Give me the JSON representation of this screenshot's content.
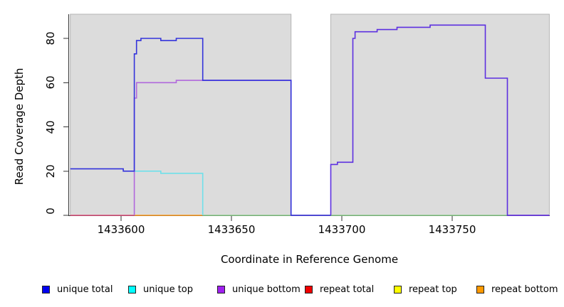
{
  "chart_data": {
    "type": "line",
    "title": "",
    "xlabel": "Coordinate in Reference Genome",
    "ylabel": "Read Coverage Depth",
    "xlim": [
      1433577,
      1433794
    ],
    "ylim": [
      0,
      91
    ],
    "x_ticks": [
      1433600,
      1433650,
      1433700,
      1433750
    ],
    "y_ticks": [
      0,
      20,
      40,
      60,
      80
    ],
    "grid": false,
    "plot_bg": "#ffffff",
    "region_fill": "#dcdcdc",
    "region_border": "#b4b4b4",
    "axis_color": "#333333",
    "background_regions": [
      {
        "start": 1433577,
        "end": 1433677
      },
      {
        "start": 1433695,
        "end": 1433794
      }
    ],
    "gap_region": {
      "start": 1433677,
      "end": 1433695
    },
    "series": [
      {
        "name": "repeat-total-baseline",
        "color": "#e0517c",
        "points": [
          [
            1433577,
            0
          ],
          [
            1433606,
            0
          ]
        ]
      },
      {
        "name": "repeat-bottom-baseline",
        "color": "#ff9d1f",
        "points": [
          [
            1433606,
            0
          ],
          [
            1433637,
            0
          ]
        ]
      },
      {
        "name": "overlapped-zero-baseline",
        "color": "#8ccf8c",
        "points": [
          [
            1433637,
            0
          ],
          [
            1433775,
            0
          ]
        ]
      },
      {
        "name": "unique-top",
        "color": "#6fe0ea",
        "points": [
          [
            1433606,
            20
          ],
          [
            1433618,
            20
          ],
          [
            1433618,
            19
          ],
          [
            1433637,
            19
          ],
          [
            1433637,
            0
          ]
        ]
      },
      {
        "name": "unique-bottom",
        "color": "#b168dc",
        "points": [
          [
            1433606,
            0
          ],
          [
            1433606,
            53
          ],
          [
            1433607,
            53
          ],
          [
            1433607,
            60
          ],
          [
            1433625,
            60
          ],
          [
            1433625,
            61
          ],
          [
            1433677,
            61
          ],
          [
            1433677,
            0
          ],
          [
            1433695,
            0
          ]
        ]
      },
      {
        "name": "unique-bottom-right-tail",
        "color": "#b168dc",
        "points": [
          [
            1433775,
            0
          ],
          [
            1433794,
            0
          ]
        ]
      },
      {
        "name": "unique-total-left-block",
        "color": "#3333db",
        "points": [
          [
            1433577,
            21
          ],
          [
            1433601,
            21
          ],
          [
            1433601,
            20
          ],
          [
            1433606,
            20
          ],
          [
            1433606,
            73
          ],
          [
            1433607,
            73
          ],
          [
            1433607,
            79
          ],
          [
            1433609,
            79
          ],
          [
            1433609,
            80
          ],
          [
            1433618,
            80
          ],
          [
            1433618,
            79
          ],
          [
            1433625,
            79
          ],
          [
            1433625,
            80
          ],
          [
            1433637,
            80
          ],
          [
            1433637,
            61
          ],
          [
            1433677,
            61
          ],
          [
            1433677,
            0
          ],
          [
            1433695,
            0
          ]
        ]
      },
      {
        "name": "unique-total-right-block-overlapping-unique-bottom",
        "color": "#5c2fe0",
        "points": [
          [
            1433695,
            0
          ],
          [
            1433695,
            23
          ],
          [
            1433698,
            23
          ],
          [
            1433698,
            24
          ],
          [
            1433705,
            24
          ],
          [
            1433705,
            80
          ],
          [
            1433706,
            80
          ],
          [
            1433706,
            83
          ],
          [
            1433716,
            83
          ],
          [
            1433716,
            84
          ],
          [
            1433725,
            84
          ],
          [
            1433725,
            85
          ],
          [
            1433740,
            85
          ],
          [
            1433740,
            86
          ],
          [
            1433765,
            86
          ],
          [
            1433765,
            62
          ],
          [
            1433775,
            62
          ],
          [
            1433775,
            0
          ],
          [
            1433794,
            0
          ]
        ]
      }
    ]
  },
  "legend": {
    "items": [
      {
        "label": "unique total",
        "color": "#0000f0"
      },
      {
        "label": "unique top",
        "color": "#00ffff"
      },
      {
        "label": "unique bottom",
        "color": "#a020f0"
      },
      {
        "label": "repeat total",
        "color": "#f00000"
      },
      {
        "label": "repeat top",
        "color": "#ffff00"
      },
      {
        "label": "repeat bottom",
        "color": "#ff9900"
      }
    ]
  }
}
